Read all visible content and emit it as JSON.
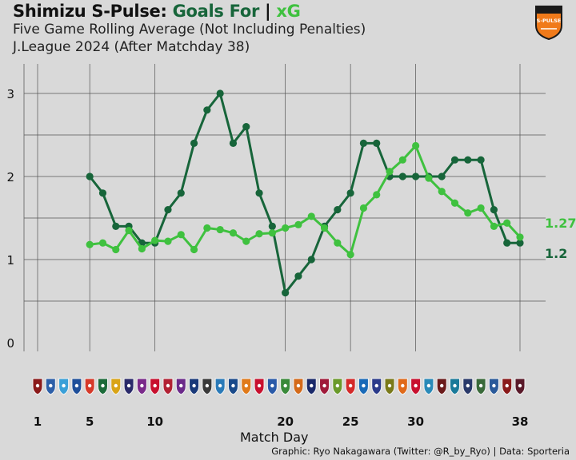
{
  "header": {
    "title_team": "Shimizu S-Pulse:",
    "title_goals": "Goals For",
    "title_sep": "|",
    "title_xg": "xG",
    "subtitle1": "Five Game Rolling Average (Not Including Penalties)",
    "subtitle2": "J.League 2024 (After Matchday 38)",
    "badge_text": "S-PULSE"
  },
  "footer": {
    "credit": "Graphic: Ryo Nakagawara (Twitter: @R_by_Ryo) | Data: Sporteria"
  },
  "colors": {
    "background": "#d9d9d9",
    "goals": "#17653a",
    "xg": "#3fc13f",
    "grid": "#555555",
    "badge": "#f07a1a"
  },
  "chart_data": {
    "type": "line",
    "title": "Shimizu S-Pulse: Goals For | xG",
    "xlabel": "Match Day",
    "ylabel": "",
    "xlim": [
      1,
      38
    ],
    "ylim": [
      0,
      3.2
    ],
    "x_ticks": [
      1,
      5,
      10,
      20,
      25,
      30,
      38
    ],
    "y_ticks": [
      0,
      1,
      2,
      3
    ],
    "grid": true,
    "series": [
      {
        "name": "Goals For",
        "color": "#17653a",
        "end_label": "1.2",
        "x": [
          5,
          6,
          7,
          8,
          9,
          10,
          11,
          12,
          13,
          14,
          15,
          16,
          17,
          18,
          19,
          20,
          21,
          22,
          23,
          24,
          25,
          26,
          27,
          28,
          29,
          30,
          31,
          32,
          33,
          34,
          35,
          36,
          37,
          38
        ],
        "values": [
          2.0,
          1.8,
          1.4,
          1.4,
          1.2,
          1.2,
          1.6,
          1.8,
          2.4,
          2.8,
          3.0,
          2.4,
          2.6,
          1.8,
          1.4,
          0.6,
          0.8,
          1.0,
          1.4,
          1.6,
          1.8,
          2.4,
          2.4,
          2.0,
          2.0,
          2.0,
          2.0,
          2.0,
          2.2,
          2.2,
          2.2,
          1.6,
          1.2,
          1.2
        ]
      },
      {
        "name": "xG",
        "color": "#3fc13f",
        "end_label": "1.27",
        "x": [
          5,
          6,
          7,
          8,
          9,
          10,
          11,
          12,
          13,
          14,
          15,
          16,
          17,
          18,
          19,
          20,
          21,
          22,
          23,
          24,
          25,
          26,
          27,
          28,
          29,
          30,
          31,
          32,
          33,
          34,
          35,
          36,
          37,
          38
        ],
        "values": [
          1.18,
          1.2,
          1.12,
          1.35,
          1.13,
          1.23,
          1.22,
          1.3,
          1.12,
          1.38,
          1.36,
          1.32,
          1.22,
          1.31,
          1.32,
          1.38,
          1.42,
          1.52,
          1.38,
          1.2,
          1.06,
          1.62,
          1.78,
          2.06,
          2.2,
          2.37,
          1.98,
          1.82,
          1.68,
          1.56,
          1.62,
          1.4,
          1.44,
          1.27
        ]
      }
    ],
    "opponent_icons": [
      "opponent-badge-1",
      "opponent-badge-2",
      "opponent-badge-3",
      "opponent-badge-4",
      "opponent-badge-5",
      "opponent-badge-6",
      "opponent-badge-7",
      "opponent-badge-8",
      "opponent-badge-9",
      "opponent-badge-10",
      "opponent-badge-11",
      "opponent-badge-12",
      "opponent-badge-13",
      "opponent-badge-14",
      "opponent-badge-15",
      "opponent-badge-16",
      "opponent-badge-17",
      "opponent-badge-18",
      "opponent-badge-19",
      "opponent-badge-20",
      "opponent-badge-21",
      "opponent-badge-22",
      "opponent-badge-23",
      "opponent-badge-24",
      "opponent-badge-25",
      "opponent-badge-26",
      "opponent-badge-27",
      "opponent-badge-28",
      "opponent-badge-29",
      "opponent-badge-30",
      "opponent-badge-31",
      "opponent-badge-32",
      "opponent-badge-33",
      "opponent-badge-34",
      "opponent-badge-35",
      "opponent-badge-36",
      "opponent-badge-37",
      "opponent-badge-38"
    ]
  }
}
